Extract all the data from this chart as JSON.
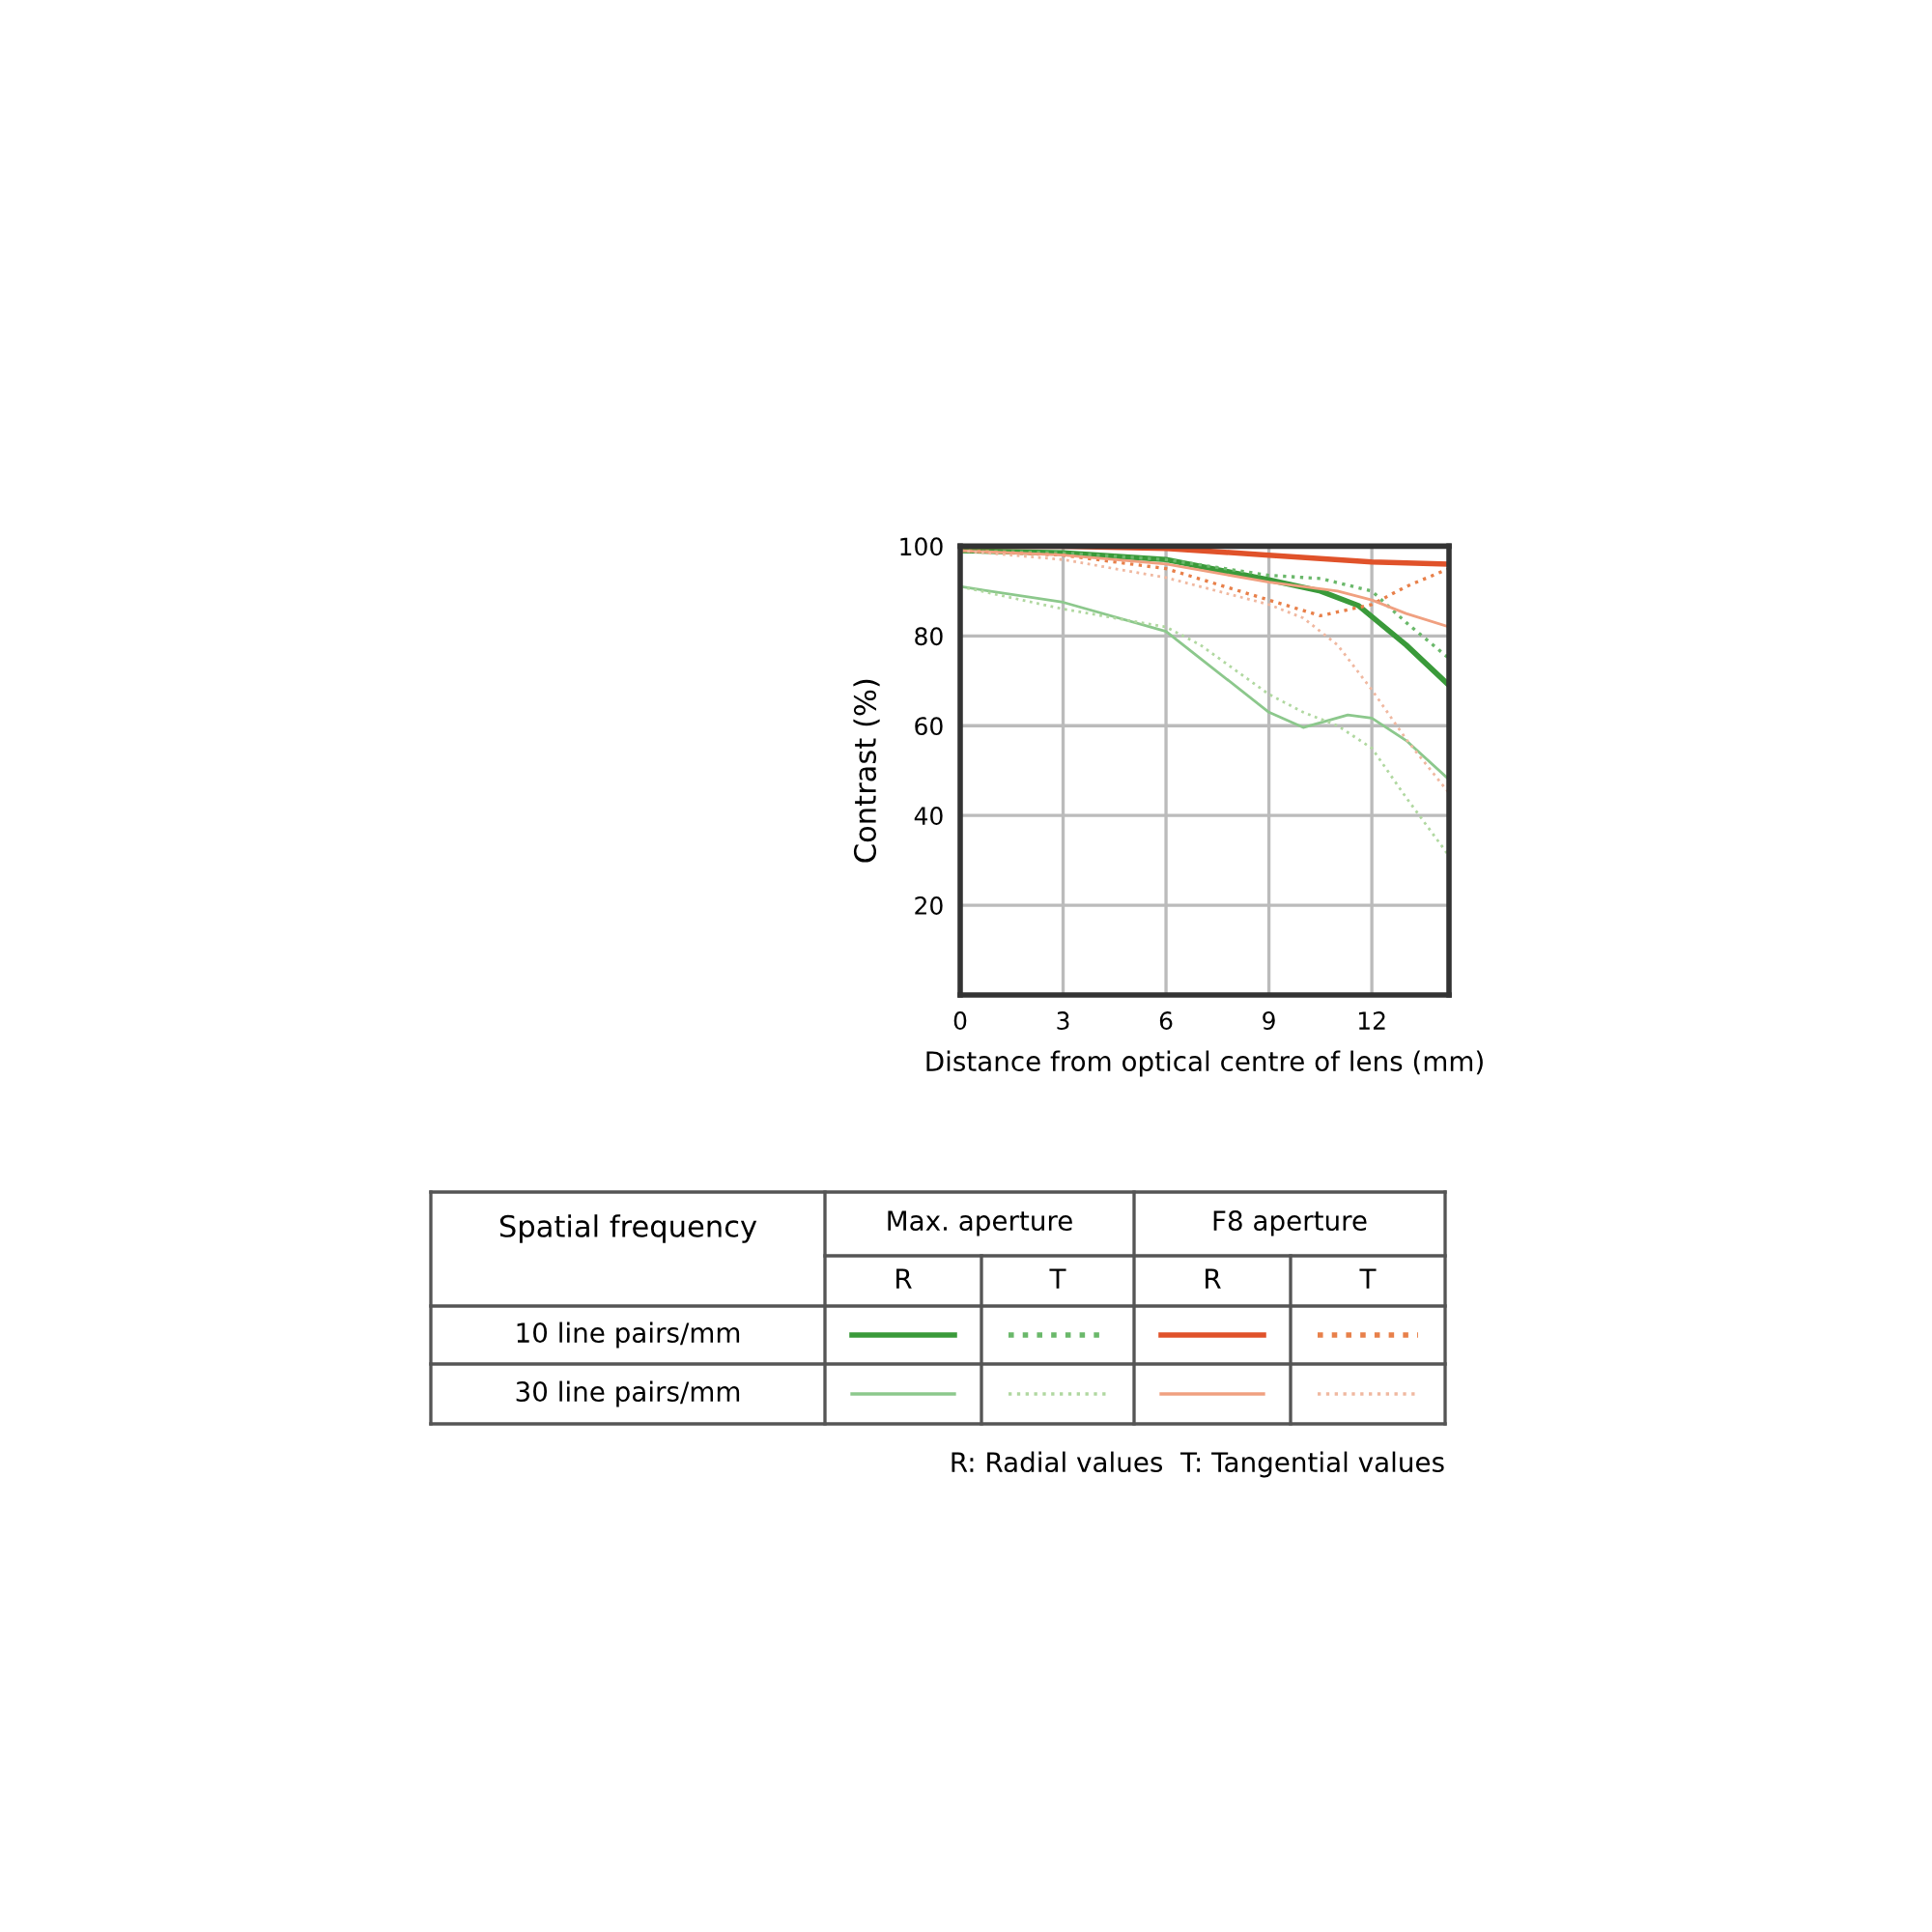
{
  "chart_data": {
    "type": "line",
    "xlabel": "Distance from optical centre of lens (mm)",
    "ylabel": "Contrast (%)",
    "xlim": [
      0,
      14.25
    ],
    "ylim": [
      0,
      100
    ],
    "xticks": [
      0,
      3,
      6,
      9,
      12
    ],
    "yticks": [
      20,
      40,
      60,
      80,
      100
    ],
    "grid": true,
    "series": [
      {
        "color": "#3a9a3a",
        "line_style": "solid",
        "x": [
          0,
          3,
          6,
          9,
          10.5,
          11.6,
          13,
          14.25
        ],
        "values": [
          99,
          98.5,
          97,
          92.5,
          90,
          86.8,
          78,
          69
        ]
      },
      {
        "color": "#6ab86a",
        "line_style": "dotted",
        "x": [
          0,
          3,
          6,
          9,
          10.5,
          12,
          13,
          14.25
        ],
        "values": [
          99,
          98.5,
          97,
          93.5,
          92.8,
          90,
          83,
          75
        ]
      },
      {
        "color": "#e0522a",
        "line_style": "solid",
        "x": [
          0,
          3,
          6,
          9,
          12,
          14.25
        ],
        "values": [
          100,
          100,
          99.5,
          98,
          96.5,
          96
        ]
      },
      {
        "color": "#e8804a",
        "line_style": "dotted",
        "x": [
          0,
          3,
          6,
          9,
          10.5,
          12,
          13,
          14.25
        ],
        "values": [
          99,
          98,
          95,
          88,
          84.5,
          87,
          91,
          95
        ]
      },
      {
        "color": "#8cc88c",
        "line_style": "solid",
        "x": [
          0,
          3,
          6,
          7,
          9,
          10,
          11.3,
          12,
          13,
          14.25
        ],
        "values": [
          91,
          87.5,
          81,
          75,
          63,
          59.6,
          62.4,
          61.7,
          56.7,
          48
        ]
      },
      {
        "color": "#b0d8a0",
        "line_style": "dotted",
        "x": [
          0,
          3,
          6,
          7,
          9,
          10,
          11,
          12,
          13,
          14.25
        ],
        "values": [
          91,
          86,
          82,
          78,
          67,
          63,
          60,
          55,
          44,
          31
        ]
      },
      {
        "color": "#f0a080",
        "line_style": "solid",
        "x": [
          0,
          3,
          6,
          9,
          11,
          12,
          13,
          14.25
        ],
        "values": [
          99,
          98,
          96,
          92,
          90,
          88,
          85,
          82
        ]
      },
      {
        "color": "#f0b8a0",
        "line_style": "dotted",
        "x": [
          0,
          3,
          6,
          9,
          10,
          11,
          12,
          13,
          14.25
        ],
        "values": [
          99,
          97,
          93,
          87,
          84,
          78,
          68,
          57,
          45
        ]
      }
    ],
    "annotations": [
      "Spatial frequency",
      "Max. aperture",
      "F8 aperture",
      "R",
      "T",
      "R",
      "T",
      "10 line pairs/mm",
      "30 line pairs/mm",
      "R: Radial values  T: Tangential values"
    ]
  }
}
